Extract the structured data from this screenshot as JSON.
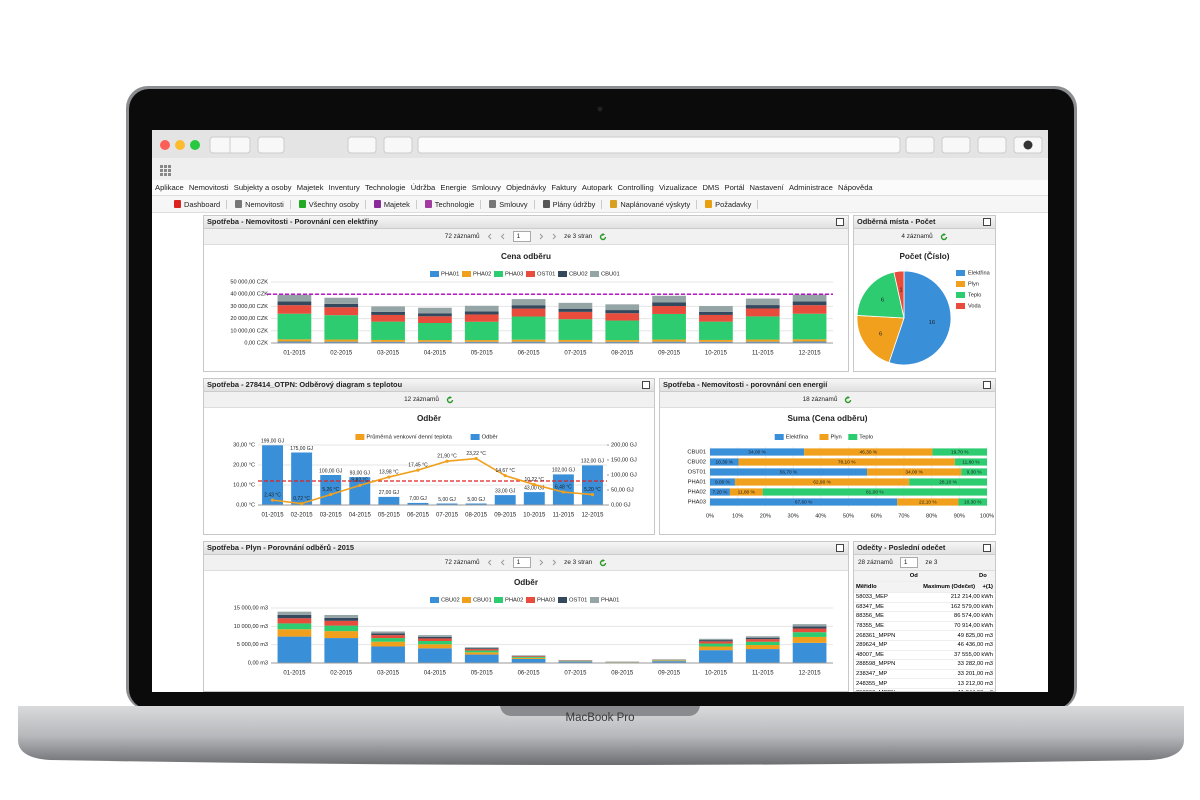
{
  "menu": [
    "Aplikace",
    "Nemovitosti",
    "Subjekty a osoby",
    "Majetek",
    "Inventury",
    "Technologie",
    "Údržba",
    "Energie",
    "Smlouvy",
    "Objednávky",
    "Faktury",
    "Autopark",
    "Controlling",
    "Vizualizace",
    "DMS",
    "Portál",
    "Nastavení",
    "Administrace",
    "Nápověda"
  ],
  "toolbar": [
    "Dashboard",
    "Nemovitosti",
    "Všechny osoby",
    "Majetek",
    "Technologie",
    "Smlouvy",
    "Plány údržby",
    "Naplánované výskyty",
    "Požadavky"
  ],
  "panels": [
    {
      "title": "Spotřeba - Nemovitosti - Porovnání cen elektřiny",
      "pager": {
        "records": "72 záznamů",
        "page": 1,
        "pages": "ze 3 stran"
      },
      "chart": {
        "type": "stacked_bar",
        "title": "Cena odběru",
        "categories": [
          "01-2015",
          "02-2015",
          "03-2015",
          "04-2015",
          "05-2015",
          "06-2015",
          "07-2015",
          "08-2015",
          "09-2015",
          "10-2015",
          "11-2015",
          "12-2015"
        ],
        "series": [
          {
            "name": "PHA01",
            "color": "#3a8fd9",
            "values": [
              1200,
              1100,
              1000,
              1000,
              1000,
              1100,
              1000,
              1000,
              1100,
              1000,
              1100,
              1200
            ]
          },
          {
            "name": "PHA02",
            "color": "#f0a01c",
            "values": [
              1800,
              1700,
              1500,
              1400,
              1400,
              1600,
              1500,
              1400,
              1700,
              1500,
              1700,
              1800
            ]
          },
          {
            "name": "PHA03",
            "color": "#2ecc71",
            "values": [
              21000,
              20000,
              15000,
              14000,
              15000,
              19000,
              17000,
              16000,
              21000,
              15000,
              19000,
              21000
            ]
          },
          {
            "name": "OST01",
            "color": "#e74c3c",
            "values": [
              7000,
              6500,
              5500,
              5500,
              6000,
              6500,
              6000,
              6000,
              6500,
              5500,
              6500,
              7000
            ]
          },
          {
            "name": "CBU02",
            "color": "#34495e",
            "values": [
              3000,
              2800,
              2500,
              2500,
              2500,
              2800,
              2600,
              2600,
              2900,
              2500,
              2800,
              3000
            ]
          },
          {
            "name": "CBU01",
            "color": "#95a5a6",
            "values": [
              5500,
              5000,
              4500,
              4500,
              4600,
              5000,
              4800,
              4700,
              5500,
              4800,
              5300,
              5700
            ]
          }
        ],
        "ylim": [
          0,
          50000
        ],
        "yticks": [
          {
            "value": 0,
            "label": "0,00 CZK"
          },
          {
            "value": 10000,
            "label": "10 000,00 CZK"
          },
          {
            "value": 20000,
            "label": "20 000,00 CZK"
          },
          {
            "value": 30000,
            "label": "30 000,00 CZK"
          },
          {
            "value": 40000,
            "label": "40 000,00 CZK"
          },
          {
            "value": 50000,
            "label": "50 000,00 CZK"
          }
        ],
        "reference_line": {
          "value": 40000,
          "color": "#b000c0"
        }
      }
    },
    {
      "title": "Odběrná místa - Počet",
      "pager": {
        "records": "4 záznamů"
      },
      "chart": {
        "type": "pie",
        "title": "Počet (Číslo)",
        "categories": [
          "Elektřina",
          "Plyn",
          "Teplo",
          "Voda"
        ],
        "values": [
          16,
          6,
          6,
          1
        ],
        "colors": [
          "#3a8fd9",
          "#f0a01c",
          "#2ecc71",
          "#e74c3c"
        ]
      }
    },
    {
      "title": "Spotřeba - 278414_OTPN: Odběrový diagram s teplotou",
      "pager": {
        "records": "12 záznamů"
      },
      "chart": {
        "type": "bar_line",
        "title": "Odběr",
        "categories": [
          "01-2015",
          "02-2015",
          "03-2015",
          "04-2015",
          "05-2015",
          "06-2015",
          "07-2015",
          "08-2015",
          "09-2015",
          "10-2015",
          "11-2015",
          "12-2015"
        ],
        "series": [
          {
            "name": "Průměrná venkovní denní teplota",
            "type": "line",
            "axis": "y",
            "color": "#f0a01c",
            "values": [
              2.43,
              0.72,
              5.26,
              9.82,
              13.98,
              17.45,
              21.9,
              23.22,
              14.67,
              10.22,
              6.48,
              5.2
            ],
            "value_labels": [
              "2,43 °C",
              "0,72 °C",
              "5,26 °C",
              "9,82 °C",
              "13,98 °C",
              "17,45 °C",
              "21,90 °C",
              "23,22 °C",
              "14,67 °C",
              "10,22 °C",
              "6,48 °C",
              "5,20 °C"
            ]
          },
          {
            "name": "Odběr",
            "type": "bar",
            "axis": "y2",
            "color": "#3a8fd9",
            "values": [
              199,
              175,
              100,
              93,
              27,
              7,
              5,
              5,
              33,
              43,
              102,
              132
            ],
            "value_labels": [
              "199,00 GJ",
              "175,00 GJ",
              "100,00 GJ",
              "93,00 GJ",
              "27,00 GJ",
              "7,00 GJ",
              "5,00 GJ",
              "5,00 GJ",
              "33,00 GJ",
              "43,00 GJ",
              "102,00 GJ",
              "132,00 GJ"
            ]
          }
        ],
        "ylim": [
          0,
          30
        ],
        "yticks": [
          {
            "value": 0,
            "label": "0,00 °C"
          },
          {
            "value": 10,
            "label": "10,00 °C"
          },
          {
            "value": 20,
            "label": "20,00 °C"
          },
          {
            "value": 30,
            "label": "30,00 °C"
          }
        ],
        "y2lim": [
          0,
          200
        ],
        "y2ticks": [
          {
            "value": 0,
            "label": "0,00 GJ"
          },
          {
            "value": 50,
            "label": "50,00 GJ"
          },
          {
            "value": 100,
            "label": "100,00 GJ"
          },
          {
            "value": 150,
            "label": "150,00 GJ"
          },
          {
            "value": 200,
            "label": "200,00 GJ"
          }
        ],
        "reference_line": {
          "value": 12,
          "color": "#e02020"
        }
      }
    },
    {
      "title": "Spotřeba - Nemovitosti - porovnání cen energií",
      "pager": {
        "records": "18 záznamů"
      },
      "chart": {
        "type": "hbar_stacked",
        "title": "Suma (Cena odběru)",
        "categories": [
          "CBU01",
          "CBU02",
          "OST01",
          "PHA01",
          "PHA02",
          "PHA03"
        ],
        "series": [
          {
            "name": "Elektřina",
            "color": "#3a8fd9",
            "values": [
              34,
              10.3,
              56.7,
              9,
              7.2,
              67.6
            ],
            "value_labels": [
              "34,00 %",
              "10,30 %",
              "56,70 %",
              "9,00 %",
              "7,20 %",
              "67,60 %"
            ]
          },
          {
            "name": "Plyn",
            "color": "#f0a01c",
            "values": [
              46.3,
              78.1,
              34,
              62.9,
              11.8,
              22.1
            ],
            "value_labels": [
              "46,30 %",
              "78,10 %",
              "34,00 %",
              "62,90 %",
              "11,80 %",
              "22,10 %"
            ]
          },
          {
            "name": "Teplo",
            "color": "#2ecc71",
            "values": [
              19.7,
              11.6,
              9.3,
              28.1,
              81,
              10.3
            ],
            "value_labels": [
              "19,70 %",
              "11,60 %",
              "9,30 %",
              "28,10 %",
              "81,00 %",
              "10,30 %"
            ]
          }
        ],
        "xlim": [
          0,
          100
        ],
        "xticks": [
          {
            "value": 0,
            "label": "0%"
          },
          {
            "value": 10,
            "label": "10%"
          },
          {
            "value": 20,
            "label": "20%"
          },
          {
            "value": 30,
            "label": "30%"
          },
          {
            "value": 40,
            "label": "40%"
          },
          {
            "value": 50,
            "label": "50%"
          },
          {
            "value": 60,
            "label": "60%"
          },
          {
            "value": 70,
            "label": "70%"
          },
          {
            "value": 80,
            "label": "80%"
          },
          {
            "value": 90,
            "label": "90%"
          },
          {
            "value": 100,
            "label": "100%"
          }
        ]
      }
    },
    {
      "title": "Spotřeba - Plyn - Porovnání odběrů - 2015",
      "pager": {
        "records": "72 záznamů",
        "page": 1,
        "pages": "ze 3 stran"
      },
      "chart": {
        "type": "stacked_bar",
        "title": "Odběr",
        "categories": [
          "01-2015",
          "02-2015",
          "03-2015",
          "04-2015",
          "05-2015",
          "06-2015",
          "07-2015",
          "08-2015",
          "09-2015",
          "10-2015",
          "11-2015",
          "12-2015"
        ],
        "series": [
          {
            "name": "CBU02",
            "color": "#3a8fd9",
            "values": [
              7200,
              6800,
              4500,
              4000,
              2300,
              1100,
              400,
              200,
              500,
              3500,
              3800,
              5500
            ]
          },
          {
            "name": "CBU01",
            "color": "#f0a01c",
            "values": [
              2000,
              1900,
              1300,
              1100,
              600,
              300,
              100,
              60,
              150,
              1000,
              1100,
              1600
            ]
          },
          {
            "name": "PHA02",
            "color": "#2ecc71",
            "values": [
              1600,
              1500,
              1000,
              900,
              500,
              250,
              100,
              50,
              120,
              800,
              900,
              1300
            ]
          },
          {
            "name": "PHA03",
            "color": "#e74c3c",
            "values": [
              1400,
              1300,
              800,
              700,
              400,
              200,
              80,
              40,
              100,
              600,
              700,
              1000
            ]
          },
          {
            "name": "OST01",
            "color": "#34495e",
            "values": [
              900,
              800,
              500,
              450,
              250,
              120,
              50,
              25,
              60,
              350,
              400,
              600
            ]
          },
          {
            "name": "PHA01",
            "color": "#95a5a6",
            "values": [
              900,
              800,
              500,
              450,
              250,
              130,
              70,
              25,
              70,
              350,
              400,
              600
            ]
          }
        ],
        "ylim": [
          0,
          15000
        ],
        "yticks": [
          {
            "value": 0,
            "label": "0,00 m3"
          },
          {
            "value": 5000,
            "label": "5 000,00 m3"
          },
          {
            "value": 10000,
            "label": "10 000,00 m3"
          },
          {
            "value": 15000,
            "label": "15 000,00 m3"
          }
        ]
      }
    },
    {
      "title": "Odečty - Poslední odečet",
      "pager": {
        "records": "28 záznamů",
        "page": 1,
        "pages": "ze 3"
      },
      "table": {
        "filters": [
          "Od",
          "Do"
        ],
        "columns": [
          "Měřidlo",
          "Maximum (Odečet)",
          "+(1)"
        ],
        "rows": [
          [
            "58033_MEP",
            "212 214,00 kWh"
          ],
          [
            "68347_ME",
            "162 579,00 kWh"
          ],
          [
            "88356_ME",
            "86 574,00 kWh"
          ],
          [
            "78355_ME",
            "70 914,00 kWh"
          ],
          [
            "268361_MPPN",
            "49 825,00 m3"
          ],
          [
            "289624_MP",
            "46 436,00 m3"
          ],
          [
            "48007_ME",
            "37 555,00 kWh"
          ],
          [
            "288598_MPPN",
            "33 282,00 m3"
          ],
          [
            "238347_MP",
            "33 201,00 m3"
          ],
          [
            "248355_MP",
            "13 212,00 m3"
          ],
          [
            "258360_MPPN",
            "11 844,00 m3"
          ]
        ]
      }
    }
  ],
  "laptop_label": "MacBook Pro"
}
